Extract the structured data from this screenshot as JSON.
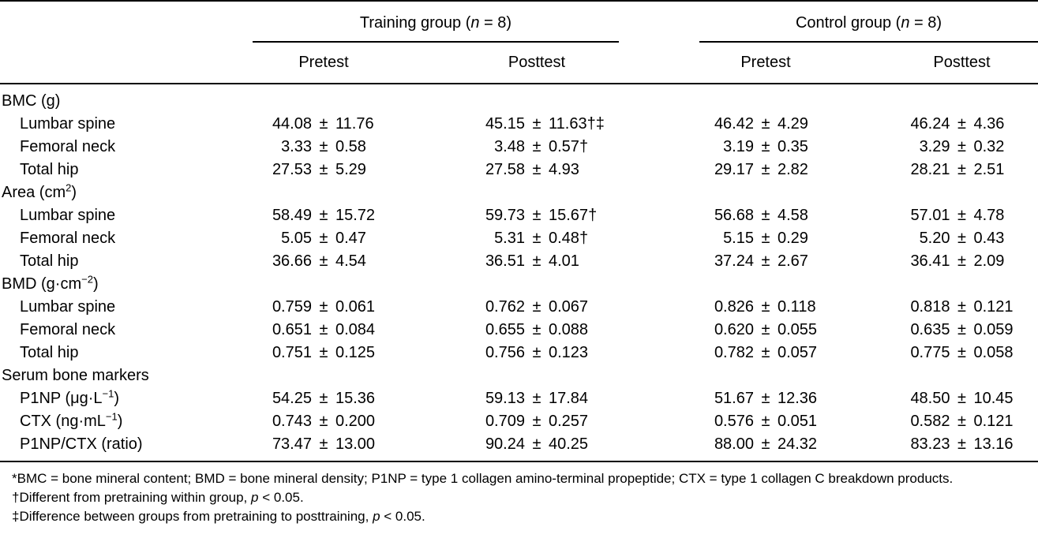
{
  "pm": "±",
  "header": {
    "groups": [
      {
        "title": [
          {
            "t": "Training group ("
          },
          {
            "t": "n",
            "i": true
          },
          {
            "t": " = 8)"
          }
        ],
        "subcols": [
          "Pretest",
          "Posttest"
        ]
      },
      {
        "title": [
          {
            "t": "Control group ("
          },
          {
            "t": "n",
            "i": true
          },
          {
            "t": " = 8)"
          }
        ],
        "subcols": [
          "Pretest",
          "Posttest"
        ]
      }
    ]
  },
  "rows": [
    {
      "label": [
        {
          "t": "BMC (g)"
        }
      ],
      "section": true,
      "cells": [
        null,
        null,
        null,
        null
      ]
    },
    {
      "label": [
        {
          "t": "Lumbar spine"
        }
      ],
      "indent": true,
      "cells": [
        {
          "v": "44.08",
          "sd": "11.76"
        },
        {
          "v": "45.15",
          "sd": "11.63",
          "m": "†‡"
        },
        {
          "v": "46.42",
          "sd": "4.29"
        },
        {
          "v": "46.24",
          "sd": "4.36"
        }
      ]
    },
    {
      "label": [
        {
          "t": "Femoral neck"
        }
      ],
      "indent": true,
      "cells": [
        {
          "v": "3.33",
          "sd": "0.58"
        },
        {
          "v": "3.48",
          "sd": "0.57",
          "m": "†"
        },
        {
          "v": "3.19",
          "sd": "0.35"
        },
        {
          "v": "3.29",
          "sd": "0.32"
        }
      ]
    },
    {
      "label": [
        {
          "t": "Total hip"
        }
      ],
      "indent": true,
      "cells": [
        {
          "v": "27.53",
          "sd": "5.29"
        },
        {
          "v": "27.58",
          "sd": "4.93"
        },
        {
          "v": "29.17",
          "sd": "2.82"
        },
        {
          "v": "28.21",
          "sd": "2.51"
        }
      ]
    },
    {
      "label": [
        {
          "t": "Area (cm"
        },
        {
          "t": "2",
          "sup": true
        },
        {
          "t": ")"
        }
      ],
      "section": true,
      "cells": [
        null,
        null,
        null,
        null
      ]
    },
    {
      "label": [
        {
          "t": "Lumbar spine"
        }
      ],
      "indent": true,
      "cells": [
        {
          "v": "58.49",
          "sd": "15.72"
        },
        {
          "v": "59.73",
          "sd": "15.67",
          "m": "†"
        },
        {
          "v": "56.68",
          "sd": "4.58"
        },
        {
          "v": "57.01",
          "sd": "4.78"
        }
      ]
    },
    {
      "label": [
        {
          "t": "Femoral neck"
        }
      ],
      "indent": true,
      "cells": [
        {
          "v": "5.05",
          "sd": "0.47"
        },
        {
          "v": "5.31",
          "sd": "0.48",
          "m": "†"
        },
        {
          "v": "5.15",
          "sd": "0.29"
        },
        {
          "v": "5.20",
          "sd": "0.43"
        }
      ]
    },
    {
      "label": [
        {
          "t": "Total hip"
        }
      ],
      "indent": true,
      "cells": [
        {
          "v": "36.66",
          "sd": "4.54"
        },
        {
          "v": "36.51",
          "sd": "4.01"
        },
        {
          "v": "37.24",
          "sd": "2.67"
        },
        {
          "v": "36.41",
          "sd": "2.09"
        }
      ]
    },
    {
      "label": [
        {
          "t": "BMD (g·cm"
        },
        {
          "t": "−2",
          "sup": true
        },
        {
          "t": ")"
        }
      ],
      "section": true,
      "cells": [
        null,
        null,
        null,
        null
      ]
    },
    {
      "label": [
        {
          "t": "Lumbar spine"
        }
      ],
      "indent": true,
      "cells": [
        {
          "v": "0.759",
          "sd": "0.061"
        },
        {
          "v": "0.762",
          "sd": "0.067"
        },
        {
          "v": "0.826",
          "sd": "0.118"
        },
        {
          "v": "0.818",
          "sd": "0.121"
        }
      ]
    },
    {
      "label": [
        {
          "t": "Femoral neck"
        }
      ],
      "indent": true,
      "cells": [
        {
          "v": "0.651",
          "sd": "0.084"
        },
        {
          "v": "0.655",
          "sd": "0.088"
        },
        {
          "v": "0.620",
          "sd": "0.055"
        },
        {
          "v": "0.635",
          "sd": "0.059"
        }
      ]
    },
    {
      "label": [
        {
          "t": "Total hip"
        }
      ],
      "indent": true,
      "cells": [
        {
          "v": "0.751",
          "sd": "0.125"
        },
        {
          "v": "0.756",
          "sd": "0.123"
        },
        {
          "v": "0.782",
          "sd": "0.057"
        },
        {
          "v": "0.775",
          "sd": "0.058"
        }
      ]
    },
    {
      "label": [
        {
          "t": "Serum bone markers"
        }
      ],
      "section": true,
      "cells": [
        null,
        null,
        null,
        null
      ]
    },
    {
      "label": [
        {
          "t": "P1NP (μg·L"
        },
        {
          "t": "−1",
          "sup": true
        },
        {
          "t": ")"
        }
      ],
      "indent": true,
      "cells": [
        {
          "v": "54.25",
          "sd": "15.36"
        },
        {
          "v": "59.13",
          "sd": "17.84"
        },
        {
          "v": "51.67",
          "sd": "12.36"
        },
        {
          "v": "48.50",
          "sd": "10.45"
        }
      ]
    },
    {
      "label": [
        {
          "t": "CTX (ng·mL"
        },
        {
          "t": "−1",
          "sup": true
        },
        {
          "t": ")"
        }
      ],
      "indent": true,
      "cells": [
        {
          "v": "0.743",
          "sd": "0.200"
        },
        {
          "v": "0.709",
          "sd": "0.257"
        },
        {
          "v": "0.576",
          "sd": "0.051"
        },
        {
          "v": "0.582",
          "sd": "0.121"
        }
      ]
    },
    {
      "label": [
        {
          "t": "P1NP/CTX (ratio)"
        }
      ],
      "indent": true,
      "cells": [
        {
          "v": "73.47",
          "sd": "13.00"
        },
        {
          "v": "90.24",
          "sd": "40.25"
        },
        {
          "v": "88.00",
          "sd": "24.32"
        },
        {
          "v": "83.23",
          "sd": "13.16"
        }
      ]
    }
  ],
  "footnotes": [
    [
      {
        "t": "*BMC = bone mineral content; BMD = bone mineral density; P1NP = type 1 collagen amino-terminal propeptide; CTX = type 1 collagen C breakdown products."
      }
    ],
    [
      {
        "t": "†Different from pretraining within group, "
      },
      {
        "t": "p",
        "i": true
      },
      {
        "t": " < 0.05."
      }
    ],
    [
      {
        "t": "‡Difference between groups from pretraining to posttraining, "
      },
      {
        "t": "p",
        "i": true
      },
      {
        "t": " < 0.05."
      }
    ]
  ]
}
